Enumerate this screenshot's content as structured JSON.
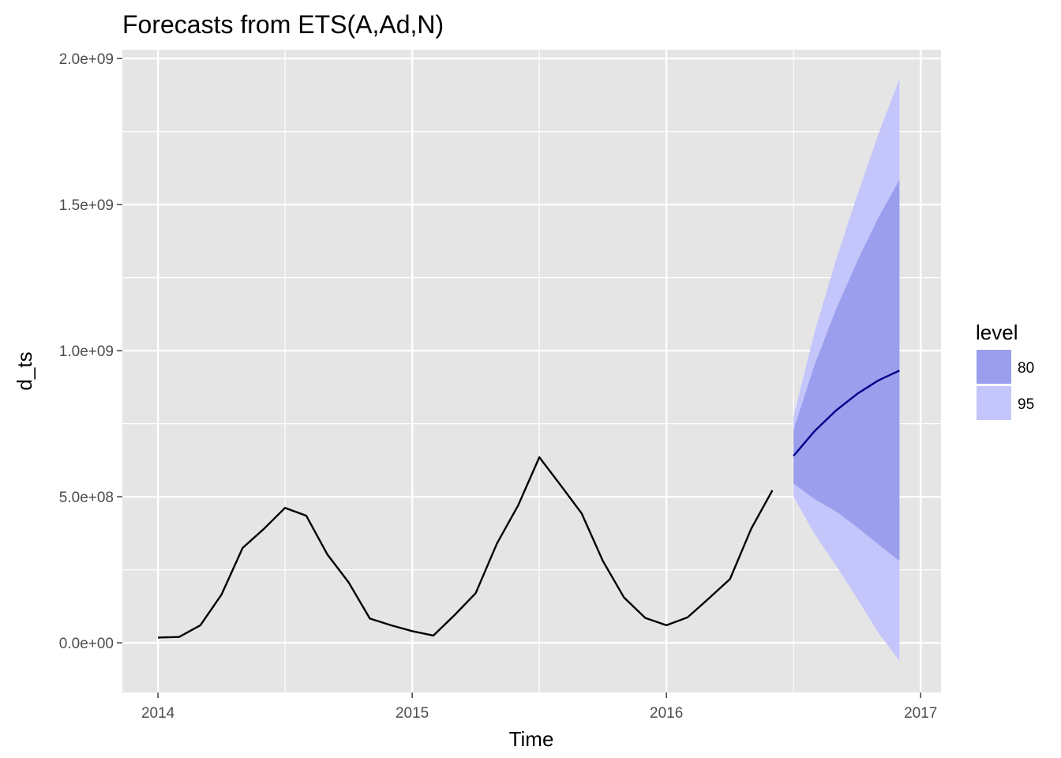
{
  "chart_data": {
    "type": "line",
    "title": "Forecasts from ETS(A,Ad,N)",
    "xlabel": "Time",
    "ylabel": "d_ts",
    "xlim": [
      2013.86,
      2017.08
    ],
    "ylim": [
      -170000000,
      2030000000
    ],
    "x_ticks": [
      2014,
      2015,
      2016,
      2017
    ],
    "x_tick_labels": [
      "2014",
      "2015",
      "2016",
      "2017"
    ],
    "y_ticks": [
      0,
      500000000,
      1000000000,
      1500000000,
      2000000000
    ],
    "y_tick_labels": [
      "0.0e+00",
      "5.0e+08",
      "1.0e+09",
      "1.5e+09",
      "2.0e+09"
    ],
    "grid": true,
    "legend": {
      "title": "level",
      "position": "right",
      "entries": [
        {
          "label": "80",
          "color": "#9b9eec"
        },
        {
          "label": "95",
          "color": "#c3c5fb"
        }
      ]
    },
    "colors": {
      "panel_background": "#e5e5e5",
      "grid": "#ffffff",
      "history_line": "#000000",
      "forecast_line": "#00008b",
      "band_80": "#9b9eec",
      "band_95": "#c3c5fb"
    },
    "history": {
      "x": [
        2014.0,
        2014.0833,
        2014.1667,
        2014.25,
        2014.3333,
        2014.4167,
        2014.5,
        2014.5833,
        2014.6667,
        2014.75,
        2014.8333,
        2014.9167,
        2015.0,
        2015.0833,
        2015.1667,
        2015.25,
        2015.3333,
        2015.4167,
        2015.5,
        2015.5833,
        2015.6667,
        2015.75,
        2015.8333,
        2015.9167,
        2016.0,
        2016.0833,
        2016.1667,
        2016.25,
        2016.3333,
        2016.4167
      ],
      "y": [
        18000000,
        20000000,
        60000000,
        165000000,
        325000000,
        390000000,
        462000000,
        435000000,
        302000000,
        207000000,
        83000000,
        60000000,
        40000000,
        25000000,
        95000000,
        170000000,
        340000000,
        470000000,
        635000000,
        540000000,
        443000000,
        280000000,
        155000000,
        85000000,
        60000000,
        87000000,
        152000000,
        218000000,
        390000000,
        522000000
      ]
    },
    "forecast": {
      "x": [
        2016.5,
        2016.5833,
        2016.6667,
        2016.75,
        2016.8333,
        2016.9167
      ],
      "mean": [
        640000000,
        725000000,
        795000000,
        852000000,
        898000000,
        932000000
      ],
      "lo80": [
        545000000,
        492000000,
        450000000,
        396000000,
        337000000,
        280000000
      ],
      "hi80": [
        730000000,
        952000000,
        1140000000,
        1305000000,
        1455000000,
        1585000000
      ],
      "lo95": [
        500000000,
        372000000,
        265000000,
        152000000,
        35000000,
        -62000000
      ],
      "hi95": [
        775000000,
        1065000000,
        1310000000,
        1530000000,
        1740000000,
        1930000000
      ]
    }
  }
}
